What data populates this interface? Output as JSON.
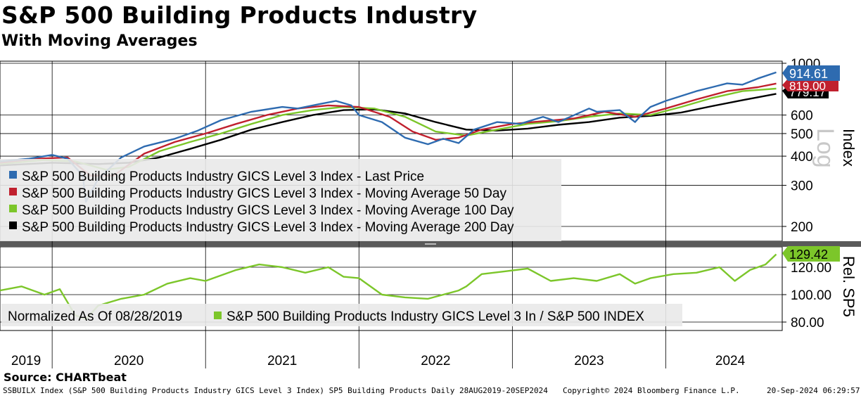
{
  "title": "S&P 500 Building Products Industry",
  "subtitle": "With Moving Averages",
  "source": "Source: CHARTbeat",
  "footer": {
    "left": "SSBUILX Index (S&P 500 Building Products Industry GICS Level 3 Index) SP5 Building Products  Daily 28AUG2019-20SEP2024",
    "center": "Copyright© 2024 Bloomberg Finance L.P.",
    "right": "20-Sep-2024 06:29:57"
  },
  "colors": {
    "last_price": "#2e6bb0",
    "ma50": "#c0202e",
    "ma100": "#7cc62a",
    "ma200": "#000000",
    "relative": "#7cc62a"
  },
  "chart_data": [
    {
      "type": "line",
      "panel": "upper",
      "scale": "log",
      "ylabel": "Index",
      "scale_label": "Log",
      "yticks": [
        200,
        300,
        400,
        500,
        600,
        1000
      ],
      "ylim": [
        180,
        1000
      ],
      "x_labels": [
        "2019",
        "2020",
        "2021",
        "2022",
        "2023",
        "2024"
      ],
      "last_values": {
        "last_price": "914.61",
        "ma50": "819.00",
        "ma100": "779.17"
      },
      "series": [
        {
          "name": "S&P 500 Building Products Industry GICS Level 3 Index - Last Price",
          "key": "last_price",
          "x": [
            2019.66,
            2019.85,
            2020.0,
            2020.1,
            2020.2,
            2020.22,
            2020.3,
            2020.45,
            2020.6,
            2020.8,
            2020.95,
            2021.1,
            2021.3,
            2021.5,
            2021.6,
            2021.75,
            2021.85,
            2021.95,
            2022.0,
            2022.15,
            2022.3,
            2022.45,
            2022.55,
            2022.65,
            2022.75,
            2022.9,
            2023.05,
            2023.2,
            2023.3,
            2023.5,
            2023.55,
            2023.7,
            2023.8,
            2023.83,
            2023.9,
            2024.0,
            2024.2,
            2024.4,
            2024.5,
            2024.6,
            2024.72
          ],
          "y": [
            380,
            390,
            405,
            390,
            330,
            255,
            320,
            395,
            440,
            475,
            515,
            570,
            620,
            650,
            640,
            670,
            690,
            660,
            600,
            560,
            480,
            450,
            475,
            455,
            520,
            560,
            550,
            590,
            560,
            640,
            620,
            630,
            560,
            590,
            650,
            690,
            760,
            820,
            810,
            860,
            914.61
          ]
        },
        {
          "name": "S&P 500 Building Products Industry GICS Level 3 Index - Moving Average 50 Day",
          "key": "ma50",
          "x": [
            2019.66,
            2019.9,
            2020.1,
            2020.25,
            2020.4,
            2020.6,
            2020.8,
            2021.0,
            2021.2,
            2021.4,
            2021.6,
            2021.8,
            2022.0,
            2022.2,
            2022.35,
            2022.5,
            2022.65,
            2022.8,
            2023.0,
            2023.2,
            2023.4,
            2023.6,
            2023.8,
            2024.0,
            2024.2,
            2024.4,
            2024.6,
            2024.72
          ],
          "y": [
            375,
            390,
            395,
            330,
            330,
            410,
            460,
            500,
            550,
            600,
            640,
            660,
            650,
            590,
            510,
            470,
            480,
            520,
            550,
            565,
            580,
            620,
            590,
            640,
            700,
            760,
            790,
            819
          ]
        },
        {
          "name": "S&P 500 Building Products Industry GICS Level 3 Index - Moving Average 100 Day",
          "key": "ma100",
          "x": [
            2019.66,
            2019.95,
            2020.15,
            2020.35,
            2020.5,
            2020.7,
            2020.9,
            2021.1,
            2021.3,
            2021.5,
            2021.7,
            2021.9,
            2022.1,
            2022.3,
            2022.5,
            2022.7,
            2022.9,
            2023.1,
            2023.3,
            2023.5,
            2023.7,
            2023.9,
            2024.1,
            2024.3,
            2024.5,
            2024.72
          ],
          "y": [
            370,
            385,
            380,
            350,
            360,
            420,
            460,
            500,
            550,
            600,
            630,
            650,
            640,
            590,
            510,
            490,
            520,
            550,
            565,
            590,
            610,
            600,
            650,
            710,
            760,
            779.17
          ]
        },
        {
          "name": "S&P 500 Building Products Industry GICS Level 3 Index - Moving Average 200 Day",
          "key": "ma200",
          "x": [
            2019.66,
            2020.0,
            2020.3,
            2020.5,
            2020.7,
            2020.9,
            2021.1,
            2021.3,
            2021.5,
            2021.7,
            2021.9,
            2022.1,
            2022.3,
            2022.5,
            2022.7,
            2022.9,
            2023.1,
            2023.3,
            2023.5,
            2023.7,
            2023.9,
            2024.1,
            2024.3,
            2024.5,
            2024.72
          ],
          "y": [
            365,
            375,
            370,
            375,
            395,
            430,
            470,
            520,
            560,
            600,
            630,
            635,
            610,
            560,
            520,
            515,
            525,
            545,
            560,
            585,
            595,
            615,
            655,
            695,
            740
          ]
        }
      ]
    },
    {
      "type": "line",
      "panel": "lower",
      "ylabel": "Rel. SP5",
      "yticks": [
        80.0,
        100.0,
        120.0
      ],
      "ytick_labels": [
        "80.00",
        "100.00",
        "120.00"
      ],
      "ylim": [
        75,
        130
      ],
      "normalized_label": "Normalized As Of 08/28/2019",
      "last_value": "129.42",
      "series": [
        {
          "name": "S&P 500 Building Products Industry GICS Level 3 In / S&P 500 INDEX",
          "key": "relative",
          "x": [
            2019.66,
            2019.8,
            2019.95,
            2020.05,
            2020.15,
            2020.22,
            2020.3,
            2020.45,
            2020.6,
            2020.75,
            2020.9,
            2021.0,
            2021.2,
            2021.35,
            2021.5,
            2021.65,
            2021.8,
            2021.9,
            2022.0,
            2022.15,
            2022.3,
            2022.45,
            2022.55,
            2022.65,
            2022.7,
            2022.8,
            2022.95,
            2023.1,
            2023.25,
            2023.4,
            2023.55,
            2023.7,
            2023.8,
            2023.9,
            2024.05,
            2024.2,
            2024.35,
            2024.45,
            2024.55,
            2024.65,
            2024.72
          ],
          "y": [
            103,
            106,
            100,
            104,
            85,
            82,
            92,
            97,
            100,
            108,
            112,
            110,
            118,
            122,
            120,
            116,
            120,
            113,
            112,
            100,
            98,
            97,
            100,
            103,
            106,
            115,
            117,
            119,
            110,
            112,
            110,
            115,
            108,
            112,
            115,
            116,
            120,
            110,
            118,
            122,
            129.42
          ]
        }
      ]
    }
  ]
}
